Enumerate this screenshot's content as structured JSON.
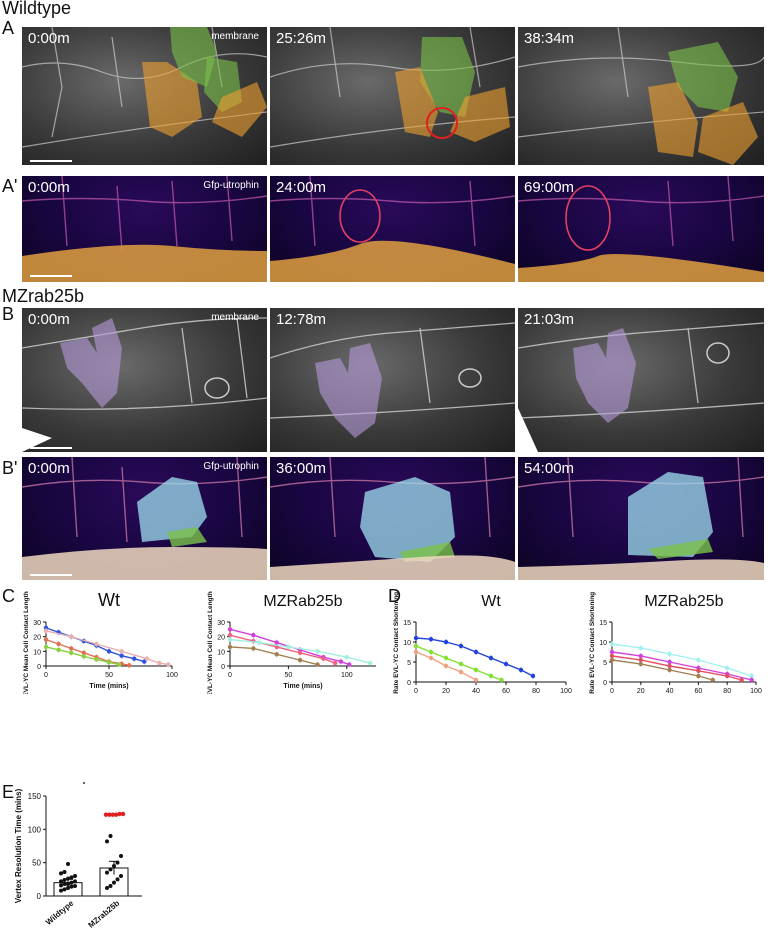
{
  "labels": {
    "title_wt": "Wildtype",
    "title_mz": "MZrab25b",
    "A": "A",
    "A2": "A'",
    "B": "B",
    "B2": "B'",
    "C": "C",
    "D": "D",
    "E": "E"
  },
  "rows": [
    {
      "tag": "membrane",
      "times": [
        "0:00m",
        "25:26m",
        "38:34m"
      ]
    },
    {
      "tag": "Gfp-utrophin",
      "times": [
        "0:00m",
        "24:00m",
        "69:00m"
      ]
    },
    {
      "tag": "membrane",
      "times": [
        "0:00m",
        "12:78m",
        "21:03m"
      ]
    },
    {
      "tag": "Gfp-utrophin",
      "times": [
        "0:00m",
        "36:00m",
        "54:00m"
      ]
    }
  ],
  "colors": {
    "green": "#7cc24a",
    "orange": "#f0a030",
    "purple": "#b59bd8",
    "cyan": "#9fe0f0",
    "red": "#e02020"
  },
  "chart_data": [
    {
      "type": "line",
      "title": "Wt",
      "ylabel": "EVL-YC Mean Cell Contact Length",
      "xlabel": "Time (mins)",
      "xlim": [
        0,
        100
      ],
      "ylim": [
        0,
        30
      ],
      "xticks": [
        0,
        50,
        100
      ],
      "yticks": [
        0,
        10,
        20,
        30
      ],
      "series": [
        {
          "color": "#3050e0",
          "x": [
            0,
            10,
            20,
            30,
            40,
            50,
            60,
            70,
            78
          ],
          "y": [
            26,
            23,
            20,
            17,
            14,
            10,
            7,
            5,
            3
          ]
        },
        {
          "color": "#e8b0b0",
          "x": [
            0,
            20,
            40,
            60,
            80,
            90,
            97
          ],
          "y": [
            24,
            20,
            15,
            10,
            5,
            2,
            1
          ]
        },
        {
          "color": "#e07050",
          "x": [
            0,
            10,
            20,
            30,
            40,
            50,
            60,
            66
          ],
          "y": [
            18,
            15,
            12,
            9,
            6,
            3,
            1.5,
            0.5
          ]
        },
        {
          "color": "#8ad040",
          "x": [
            0,
            10,
            20,
            30,
            40,
            50,
            58
          ],
          "y": [
            13,
            11,
            9,
            6.5,
            4.5,
            2.5,
            1
          ]
        }
      ]
    },
    {
      "type": "line",
      "title": "MZRab25b",
      "ylabel": "EVL-YC Mean Cell Contact Length",
      "xlabel": "Time (mins)",
      "xlim": [
        0,
        125
      ],
      "ylim": [
        0,
        30
      ],
      "xticks": [
        0,
        50,
        100
      ],
      "yticks": [
        0,
        10,
        20,
        30
      ],
      "series": [
        {
          "color": "#d040e0",
          "x": [
            0,
            20,
            40,
            60,
            80,
            95,
            102
          ],
          "y": [
            25,
            21,
            16,
            11,
            6,
            3,
            1
          ]
        },
        {
          "color": "#f06080",
          "x": [
            0,
            20,
            40,
            60,
            80,
            90
          ],
          "y": [
            21,
            17,
            13,
            9,
            5,
            2
          ]
        },
        {
          "color": "#a0f0e0",
          "x": [
            0,
            25,
            50,
            75,
            100,
            120
          ],
          "y": [
            18,
            16,
            13,
            10,
            6,
            2
          ]
        },
        {
          "color": "#a08050",
          "x": [
            0,
            20,
            40,
            60,
            75
          ],
          "y": [
            13,
            12,
            8,
            4,
            1
          ]
        }
      ]
    },
    {
      "type": "line",
      "title": "Wt",
      "ylabel": "Mean Rate EVL-YC Contact Shortening",
      "xlabel": "Time (mins)",
      "xlim": [
        0,
        100
      ],
      "ylim": [
        0,
        15
      ],
      "xticks": [
        0,
        20,
        40,
        60,
        80,
        100
      ],
      "yticks": [
        0,
        5,
        10,
        15
      ],
      "series": [
        {
          "color": "#2040e0",
          "x": [
            0,
            10,
            20,
            30,
            40,
            50,
            60,
            70,
            78
          ],
          "y": [
            11,
            10.7,
            10,
            9,
            7.5,
            6,
            4.5,
            3,
            1.5
          ]
        },
        {
          "color": "#80e030",
          "x": [
            0,
            10,
            20,
            30,
            40,
            50,
            57
          ],
          "y": [
            9,
            7.5,
            6,
            4.5,
            3,
            1.5,
            0.5
          ]
        },
        {
          "color": "#f0a080",
          "x": [
            0,
            10,
            20,
            30,
            40
          ],
          "y": [
            7.5,
            6,
            4,
            2.5,
            0.5
          ]
        }
      ]
    },
    {
      "type": "line",
      "title": "MZRab25b",
      "ylabel": "Mean Rate EVL-YC Contact Shortening",
      "xlabel": "Time (mins)",
      "xlim": [
        0,
        100
      ],
      "ylim": [
        0,
        15
      ],
      "xticks": [
        0,
        20,
        40,
        60,
        80,
        100
      ],
      "yticks": [
        0,
        5,
        10,
        15
      ],
      "series": [
        {
          "color": "#a0f0f0",
          "x": [
            0,
            20,
            40,
            60,
            80,
            97
          ],
          "y": [
            9.5,
            8.5,
            7,
            5.5,
            3.5,
            1.5
          ]
        },
        {
          "color": "#d040e0",
          "x": [
            0,
            20,
            40,
            60,
            80,
            97
          ],
          "y": [
            7.5,
            6.5,
            5,
            3.5,
            2,
            0.5
          ]
        },
        {
          "color": "#e05060",
          "x": [
            0,
            20,
            40,
            60,
            80,
            90
          ],
          "y": [
            6.5,
            5.5,
            4,
            2.8,
            1.5,
            0.5
          ]
        },
        {
          "color": "#a08050",
          "x": [
            0,
            20,
            40,
            60,
            70
          ],
          "y": [
            5.5,
            4.5,
            3,
            1.5,
            0.5
          ]
        }
      ]
    },
    {
      "type": "bar",
      "ylabel": "Vertex Resolution Time (mins)",
      "categories": [
        "Wildtype",
        "MZrab25b"
      ],
      "values": [
        20,
        42
      ],
      "errors": [
        5,
        10
      ],
      "ylim": [
        0,
        150
      ],
      "yticks": [
        0,
        50,
        100,
        150
      ],
      "points": {
        "Wildtype": [
          8,
          10,
          12,
          14,
          15,
          16,
          18,
          18,
          20,
          22,
          22,
          24,
          26,
          28,
          30,
          34,
          36,
          48
        ],
        "MZrab25b": [
          12,
          15,
          20,
          25,
          30,
          35,
          40,
          45,
          50,
          60,
          82,
          90
        ]
      },
      "red_points": {
        "MZrab25b": [
          122,
          122,
          122,
          122,
          123,
          123
        ]
      }
    }
  ]
}
